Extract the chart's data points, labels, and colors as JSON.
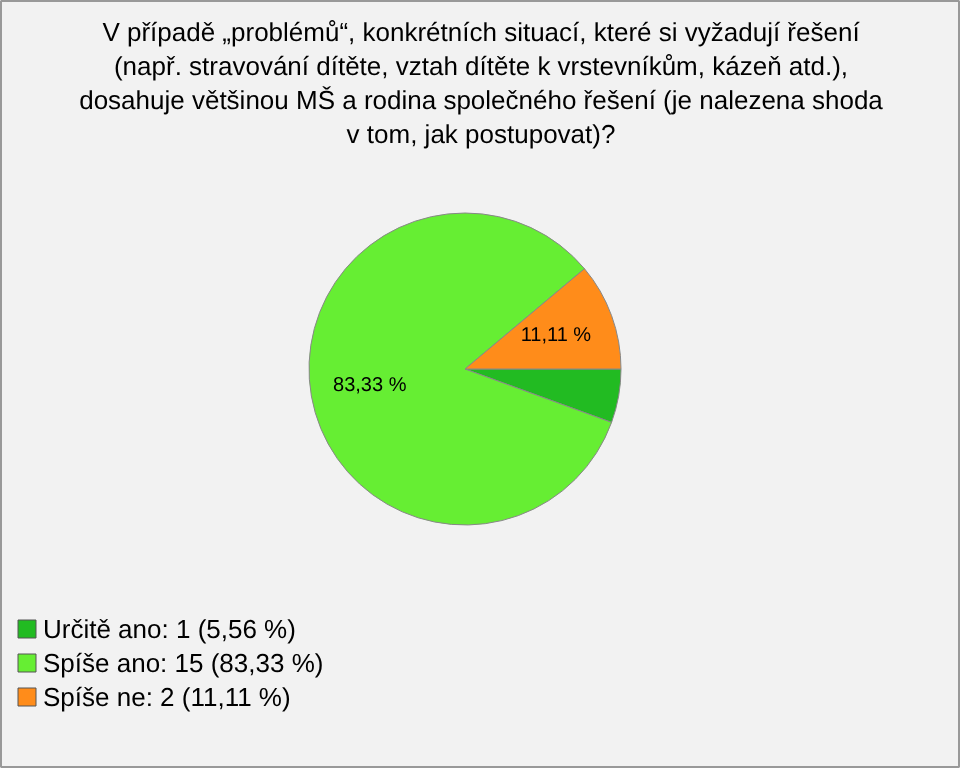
{
  "chart_data": {
    "type": "pie",
    "title": "V případě „problémů“, konkrétních situací, které si vyžadují řešení\n(např. stravování dítěte, vztah dítěte k vrstevníkům, kázeň atd.),\ndosahuje většinou MŠ a rodina společného řešení (je nalezena shoda\nv tom, jak postupovat)?",
    "categories": [
      "Určitě ano: 1 (5,56 %)",
      "Spíše ano: 15 (83,33 %)",
      "Spíše ne: 2 (11,11 %)"
    ],
    "values": [
      5.56,
      83.33,
      11.11
    ],
    "colors": [
      "#22bb22",
      "#66ee33",
      "#ff8c1a"
    ],
    "value_labels": [
      null,
      "83,33 %",
      "11,11 %"
    ],
    "legend": "bottom left"
  }
}
